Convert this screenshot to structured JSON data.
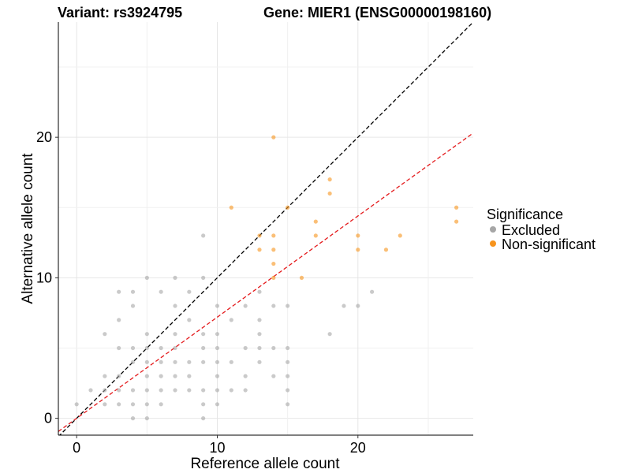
{
  "chart_data": {
    "type": "scatter",
    "title_left": "Variant: rs3924795",
    "title_right": "Gene: MIER1 (ENSG00000198160)",
    "xlabel": "Reference allele count",
    "ylabel": "Alternative allele count",
    "xlim": [
      -1.3,
      28.2
    ],
    "ylim": [
      -1.2,
      28.2
    ],
    "xticks": [
      0,
      10,
      20
    ],
    "yticks": [
      0,
      10,
      20
    ],
    "grid": true,
    "legend": {
      "title": "Significance",
      "placement": "right",
      "entries": [
        {
          "label": "Excluded",
          "color": "#a6a6a6"
        },
        {
          "label": "Non-significant",
          "color": "#f7941d"
        }
      ]
    },
    "reference_lines": [
      {
        "slope": 1.0,
        "intercept": 0,
        "color": "#000000",
        "style": "dashed"
      },
      {
        "slope": 0.72,
        "intercept": 0,
        "color": "#e41a1c",
        "style": "dashed"
      }
    ],
    "series": [
      {
        "name": "Excluded",
        "color": "#a6a6a6",
        "points": [
          [
            0,
            1
          ],
          [
            1,
            2
          ],
          [
            2,
            1
          ],
          [
            2,
            2
          ],
          [
            2,
            3
          ],
          [
            2,
            6
          ],
          [
            3,
            1
          ],
          [
            3,
            2
          ],
          [
            3,
            3
          ],
          [
            3,
            5
          ],
          [
            3,
            7
          ],
          [
            3,
            9
          ],
          [
            4,
            0
          ],
          [
            4,
            1
          ],
          [
            4,
            2
          ],
          [
            4,
            4
          ],
          [
            4,
            5
          ],
          [
            4,
            8
          ],
          [
            4,
            9
          ],
          [
            5,
            0
          ],
          [
            5,
            1
          ],
          [
            5,
            2
          ],
          [
            5,
            3
          ],
          [
            5,
            4
          ],
          [
            5,
            5
          ],
          [
            5,
            6
          ],
          [
            5,
            10
          ],
          [
            6,
            1
          ],
          [
            6,
            2
          ],
          [
            6,
            3
          ],
          [
            6,
            4
          ],
          [
            6,
            5
          ],
          [
            6,
            9
          ],
          [
            7,
            2
          ],
          [
            7,
            3
          ],
          [
            7,
            4
          ],
          [
            7,
            5
          ],
          [
            7,
            6
          ],
          [
            7,
            8
          ],
          [
            7,
            10
          ],
          [
            8,
            2
          ],
          [
            8,
            3
          ],
          [
            8,
            4
          ],
          [
            8,
            7
          ],
          [
            8,
            9
          ],
          [
            9,
            0
          ],
          [
            9,
            1
          ],
          [
            9,
            2
          ],
          [
            9,
            4
          ],
          [
            9,
            5
          ],
          [
            9,
            6
          ],
          [
            9,
            10
          ],
          [
            9,
            13
          ],
          [
            10,
            1
          ],
          [
            10,
            2
          ],
          [
            10,
            3
          ],
          [
            10,
            4
          ],
          [
            10,
            5
          ],
          [
            10,
            6
          ],
          [
            10,
            8
          ],
          [
            11,
            2
          ],
          [
            11,
            4
          ],
          [
            11,
            7
          ],
          [
            12,
            2
          ],
          [
            12,
            3
          ],
          [
            12,
            5
          ],
          [
            12,
            8
          ],
          [
            13,
            4
          ],
          [
            13,
            5
          ],
          [
            13,
            6
          ],
          [
            13,
            7
          ],
          [
            13,
            9
          ],
          [
            14,
            3
          ],
          [
            14,
            5
          ],
          [
            14,
            8
          ],
          [
            15,
            1
          ],
          [
            15,
            2
          ],
          [
            15,
            3
          ],
          [
            15,
            4
          ],
          [
            15,
            5
          ],
          [
            15,
            8
          ],
          [
            18,
            6
          ],
          [
            19,
            8
          ],
          [
            20,
            8
          ],
          [
            21,
            9
          ]
        ]
      },
      {
        "name": "Non-significant",
        "color": "#f7941d",
        "points": [
          [
            11,
            15
          ],
          [
            13,
            12
          ],
          [
            13,
            13
          ],
          [
            14,
            10
          ],
          [
            14,
            11
          ],
          [
            14,
            12
          ],
          [
            14,
            13
          ],
          [
            14,
            20
          ],
          [
            15,
            15
          ],
          [
            16,
            10
          ],
          [
            17,
            13
          ],
          [
            17,
            14
          ],
          [
            18,
            16
          ],
          [
            18,
            17
          ],
          [
            20,
            12
          ],
          [
            20,
            13
          ],
          [
            22,
            12
          ],
          [
            23,
            13
          ],
          [
            27,
            14
          ],
          [
            27,
            15
          ]
        ]
      }
    ]
  }
}
